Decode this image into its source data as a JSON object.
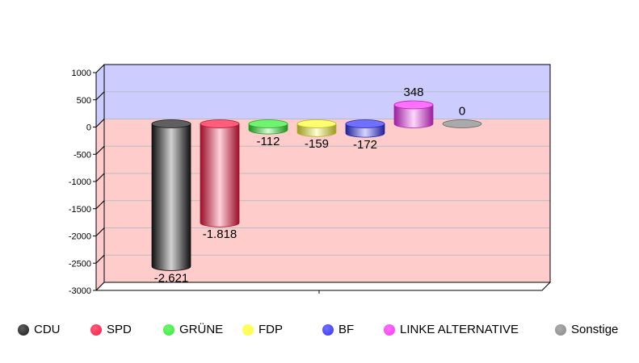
{
  "chart_data": {
    "type": "bar",
    "style": "3d-cylinder",
    "categories": [
      "CDU",
      "SPD",
      "GRÜNE",
      "FDP",
      "BF",
      "LINKE ALTERNATIVE",
      "Sonstige"
    ],
    "values": [
      -2621,
      -1818,
      -112,
      -159,
      -172,
      348,
      0
    ],
    "data_labels": [
      "-2.621",
      "-1.818",
      "-112",
      "-159",
      "-172",
      "348",
      "0"
    ],
    "colors": [
      "#1a1a1a",
      "#ff1744",
      "#33ee33",
      "#ffff33",
      "#3333ff",
      "#ff33ff",
      "#888888"
    ],
    "ylim": [
      -3000,
      1000
    ],
    "yticks": [
      "1000",
      "500",
      "0",
      "-500",
      "-1000",
      "-1500",
      "-2000",
      "-2500",
      "-3000"
    ],
    "ytick_values": [
      1000,
      500,
      0,
      -500,
      -1000,
      -1500,
      -2000,
      -2500,
      -3000
    ],
    "grid": true,
    "background": {
      "positive": "#ccccff",
      "negative": "#ffcccc"
    },
    "legend_position": "bottom",
    "title": "",
    "xlabel": "",
    "ylabel": ""
  }
}
